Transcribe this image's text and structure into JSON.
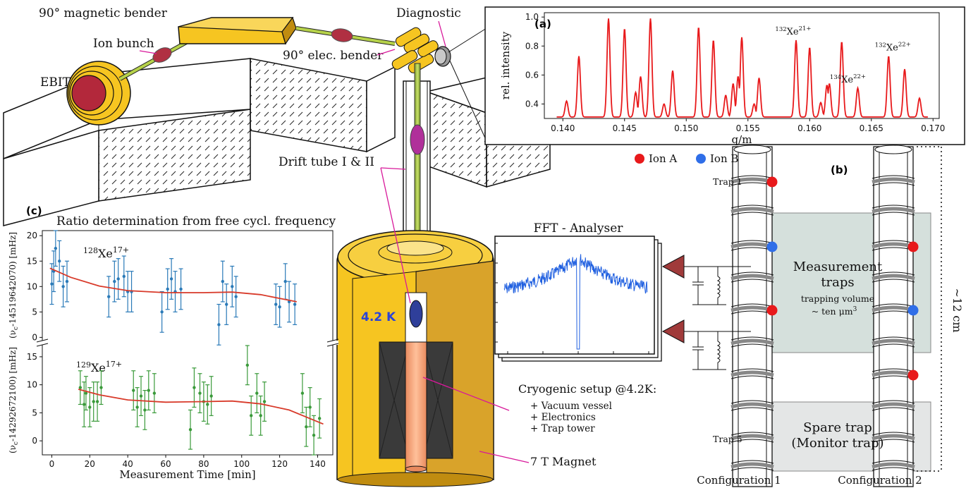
{
  "labels": {
    "bender_magnetic": "90° magnetic bender",
    "diagnostic": "Diagnostic",
    "ion_bunch": "Ion bunch",
    "elec_bender": "90° elec. bender",
    "ebit": "EBIT",
    "drift_tube": "Drift tube I & II",
    "temp": "4.2 K",
    "fft": "FFT - Analyser",
    "cryo_title": "Cryogenic setup @4.2K:",
    "cryo_items": [
      "+ Vacuum vessel",
      "+ Electronics",
      "+ Trap tower"
    ],
    "magnet": "7 T Magnet",
    "ion_a": "Ion A",
    "ion_b": "Ion B",
    "trap1": "Trap 1",
    "trap5": "Trap 5",
    "measurement_traps": "Measurement\ntraps",
    "trapping_volume": "trapping volume",
    "ten_um": "~ ten μm",
    "ten_um_sup": "3",
    "spare_trap": "Spare trap",
    "monitor_trap": "(Monitor trap)",
    "config1": "Configuration 1",
    "config2": "Configuration 2",
    "size": "~12 cm",
    "panel_a": "(a)",
    "panel_b": "(b)",
    "panel_c": "(c)",
    "panel_c_title": "Ratio determination from free cycl. frequency"
  },
  "colors": {
    "ion_a": "#e8191b",
    "ion_b": "#2f6ee8",
    "spectrum": "#e8191b",
    "series_128": "#2a7ab8",
    "series_129": "#3a9a3a",
    "fit": "#d83a2a",
    "magnet_gold": "#f6c521",
    "magnet_dark": "#c08c10",
    "pink": "#d8189a",
    "temp_blue": "#2a44d8",
    "amp_red": "#a03a3a"
  },
  "chart_data": [
    {
      "type": "line",
      "panel": "(a)",
      "xlabel": "q/m",
      "ylabel": "rel. intensity",
      "xlim": [
        0.1385,
        0.1705
      ],
      "ylim": [
        0.3,
        1.03
      ],
      "xticks": [
        0.14,
        0.145,
        0.15,
        0.155,
        0.16,
        0.165,
        0.17
      ],
      "xtick_labels": [
        "0.140",
        "0.145",
        "0.150",
        "0.155",
        "0.160",
        "0.165",
        "0.170"
      ],
      "yticks": [
        0.4,
        0.6,
        0.8,
        1.0
      ],
      "ytick_labels": [
        "0.4",
        "0.6",
        "0.8",
        "1.0"
      ],
      "baseline": 0.31,
      "peaks": [
        {
          "x": 0.1403,
          "y": 0.42
        },
        {
          "x": 0.1413,
          "y": 0.73
        },
        {
          "x": 0.1437,
          "y": 0.99
        },
        {
          "x": 0.145,
          "y": 0.92
        },
        {
          "x": 0.1459,
          "y": 0.48
        },
        {
          "x": 0.1463,
          "y": 0.59
        },
        {
          "x": 0.1471,
          "y": 0.99
        },
        {
          "x": 0.1482,
          "y": 0.4
        },
        {
          "x": 0.1489,
          "y": 0.63
        },
        {
          "x": 0.151,
          "y": 0.93
        },
        {
          "x": 0.1522,
          "y": 0.84
        },
        {
          "x": 0.1532,
          "y": 0.46
        },
        {
          "x": 0.1538,
          "y": 0.54
        },
        {
          "x": 0.1542,
          "y": 0.59
        },
        {
          "x": 0.1545,
          "y": 0.86
        },
        {
          "x": 0.1555,
          "y": 0.4
        },
        {
          "x": 0.1559,
          "y": 0.58
        },
        {
          "x": 0.1589,
          "y": 0.84
        },
        {
          "x": 0.16,
          "y": 0.79
        },
        {
          "x": 0.1609,
          "y": 0.41
        },
        {
          "x": 0.1614,
          "y": 0.53
        },
        {
          "x": 0.1616,
          "y": 0.54
        },
        {
          "x": 0.1626,
          "y": 0.83
        },
        {
          "x": 0.1639,
          "y": 0.51
        },
        {
          "x": 0.1664,
          "y": 0.73
        },
        {
          "x": 0.1677,
          "y": 0.64
        },
        {
          "x": 0.1689,
          "y": 0.44
        }
      ],
      "annotations": [
        {
          "mass": "132",
          "el": "Xe",
          "charge": "21+",
          "x": 0.1589,
          "y": 0.84
        },
        {
          "mass": "134",
          "el": "Xe",
          "charge": "22+",
          "x": 0.1639,
          "y": 0.51
        },
        {
          "mass": "132",
          "el": "Xe",
          "charge": "22+",
          "x": 0.1664,
          "y": 0.73
        }
      ]
    },
    {
      "type": "scatter",
      "panel": "(c)",
      "title": "Ratio determination from free cycl. frequency",
      "xlabel": "Measurement Time [min]",
      "xlim": [
        -5,
        148
      ],
      "xticks": [
        0,
        20,
        40,
        60,
        80,
        100,
        120,
        140
      ],
      "subplots": [
        {
          "name": "128Xe17+",
          "label_mass": "128",
          "label_el": "Xe",
          "label_charge": "17+",
          "ylabel": "(ν",
          "ylabel_sub": "c",
          "ylabel_rest": "-14519642070) [mHz]",
          "ylim": [
            -0.5,
            21
          ],
          "yticks": [
            0,
            5,
            10,
            15,
            20
          ],
          "points": [
            {
              "x": 0,
              "y": 10.5,
              "e": 4
            },
            {
              "x": 1,
              "y": 13,
              "e": 4
            },
            {
              "x": 2,
              "y": 17.5,
              "e": 3.5
            },
            {
              "x": 4,
              "y": 15,
              "e": 4
            },
            {
              "x": 6,
              "y": 10,
              "e": 4
            },
            {
              "x": 8,
              "y": 11,
              "e": 4
            },
            {
              "x": 30,
              "y": 8,
              "e": 4
            },
            {
              "x": 33,
              "y": 11,
              "e": 4
            },
            {
              "x": 35,
              "y": 11.5,
              "e": 4
            },
            {
              "x": 38,
              "y": 12,
              "e": 4
            },
            {
              "x": 40,
              "y": 9,
              "e": 4
            },
            {
              "x": 42,
              "y": 9,
              "e": 4
            },
            {
              "x": 58,
              "y": 5,
              "e": 4
            },
            {
              "x": 61,
              "y": 9.5,
              "e": 4
            },
            {
              "x": 63,
              "y": 11.5,
              "e": 4
            },
            {
              "x": 65,
              "y": 9,
              "e": 4
            },
            {
              "x": 68,
              "y": 9.5,
              "e": 4
            },
            {
              "x": 88,
              "y": 2.5,
              "e": 4
            },
            {
              "x": 90,
              "y": 11,
              "e": 4
            },
            {
              "x": 92,
              "y": 6.5,
              "e": 4
            },
            {
              "x": 95,
              "y": 10,
              "e": 4
            },
            {
              "x": 97,
              "y": 8,
              "e": 4
            },
            {
              "x": 118,
              "y": 6.5,
              "e": 4
            },
            {
              "x": 120,
              "y": 6,
              "e": 4
            },
            {
              "x": 123,
              "y": 11,
              "e": 3.5
            },
            {
              "x": 125,
              "y": 7,
              "e": 4
            },
            {
              "x": 128,
              "y": 6.5,
              "e": 4
            }
          ],
          "fit": [
            [
              -1,
              13.6
            ],
            [
              10,
              11.8
            ],
            [
              25,
              10.1
            ],
            [
              40,
              9.2
            ],
            [
              60,
              8.8
            ],
            [
              80,
              8.8
            ],
            [
              95,
              8.9
            ],
            [
              110,
              8.4
            ],
            [
              129,
              7.0
            ]
          ]
        },
        {
          "name": "129Xe17+",
          "label_mass": "129",
          "label_el": "Xe",
          "label_charge": "17+",
          "ylabel": "(ν",
          "ylabel_sub": "c",
          "ylabel_rest": "-14292672100) [mHz]",
          "ylim": [
            -2.5,
            17
          ],
          "yticks": [
            0,
            5,
            10,
            15
          ],
          "points": [
            {
              "x": 15,
              "y": 9.5,
              "e": 3
            },
            {
              "x": 17,
              "y": 6.5,
              "e": 4
            },
            {
              "x": 18,
              "y": 8.5,
              "e": 3
            },
            {
              "x": 20,
              "y": 6,
              "e": 3.5
            },
            {
              "x": 22,
              "y": 7,
              "e": 3.5
            },
            {
              "x": 24,
              "y": 7,
              "e": 3.5
            },
            {
              "x": 26,
              "y": 9.5,
              "e": 3
            },
            {
              "x": 43,
              "y": 9,
              "e": 3.5
            },
            {
              "x": 45,
              "y": 6,
              "e": 3.5
            },
            {
              "x": 47,
              "y": 8,
              "e": 3.5
            },
            {
              "x": 49,
              "y": 5.5,
              "e": 3.5
            },
            {
              "x": 51,
              "y": 9,
              "e": 3.5
            },
            {
              "x": 54,
              "y": 8.5,
              "e": 3.5
            },
            {
              "x": 73,
              "y": 2,
              "e": 3.5
            },
            {
              "x": 75,
              "y": 9.5,
              "e": 3.5
            },
            {
              "x": 78,
              "y": 8.5,
              "e": 3.5
            },
            {
              "x": 80,
              "y": 7,
              "e": 3.5
            },
            {
              "x": 82,
              "y": 6.5,
              "e": 3.5
            },
            {
              "x": 84,
              "y": 8,
              "e": 3.5
            },
            {
              "x": 103,
              "y": 13.5,
              "e": 3.5
            },
            {
              "x": 105,
              "y": 4.5,
              "e": 3.5
            },
            {
              "x": 108,
              "y": 8.5,
              "e": 3.5
            },
            {
              "x": 110,
              "y": 4.5,
              "e": 3.5
            },
            {
              "x": 112,
              "y": 7,
              "e": 3.5
            },
            {
              "x": 132,
              "y": 8.5,
              "e": 3.5
            },
            {
              "x": 134,
              "y": 2.5,
              "e": 3.5
            },
            {
              "x": 136,
              "y": 6,
              "e": 3.5
            },
            {
              "x": 138,
              "y": 1,
              "e": 3.5
            },
            {
              "x": 141,
              "y": 4,
              "e": 3.5
            }
          ],
          "fit": [
            [
              14,
              9.2
            ],
            [
              25,
              8.2
            ],
            [
              40,
              7.3
            ],
            [
              60,
              6.9
            ],
            [
              80,
              7.0
            ],
            [
              95,
              7.1
            ],
            [
              110,
              6.6
            ],
            [
              125,
              5.5
            ],
            [
              143,
              3.0
            ]
          ]
        }
      ]
    }
  ]
}
